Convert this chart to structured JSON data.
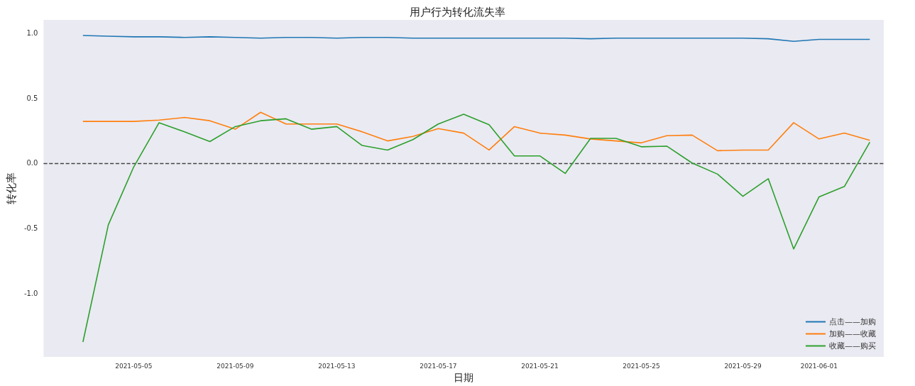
{
  "chart_data": {
    "type": "line",
    "title": "用户行为转化流失率",
    "xlabel": "日期",
    "ylabel": "转化率",
    "x": [
      "2021-05-03",
      "2021-05-04",
      "2021-05-05",
      "2021-05-06",
      "2021-05-07",
      "2021-05-08",
      "2021-05-09",
      "2021-05-10",
      "2021-05-11",
      "2021-05-12",
      "2021-05-13",
      "2021-05-14",
      "2021-05-15",
      "2021-05-16",
      "2021-05-17",
      "2021-05-18",
      "2021-05-19",
      "2021-05-20",
      "2021-05-21",
      "2021-05-22",
      "2021-05-23",
      "2021-05-24",
      "2021-05-25",
      "2021-05-26",
      "2021-05-27",
      "2021-05-28",
      "2021-05-29",
      "2021-05-30",
      "2021-05-31",
      "2021-06-01",
      "2021-06-02",
      "2021-06-03"
    ],
    "series": [
      {
        "name": "点击——加购",
        "color": "#1f77b4",
        "values": [
          0.98,
          0.975,
          0.97,
          0.97,
          0.965,
          0.97,
          0.965,
          0.96,
          0.965,
          0.965,
          0.96,
          0.965,
          0.965,
          0.96,
          0.96,
          0.96,
          0.96,
          0.96,
          0.96,
          0.96,
          0.955,
          0.96,
          0.96,
          0.96,
          0.96,
          0.96,
          0.96,
          0.955,
          0.935,
          0.95,
          0.95,
          0.95
        ]
      },
      {
        "name": "加购——收藏",
        "color": "#ff7f0e",
        "values": [
          0.32,
          0.32,
          0.32,
          0.33,
          0.35,
          0.325,
          0.26,
          0.39,
          0.3,
          0.3,
          0.3,
          0.24,
          0.17,
          0.205,
          0.265,
          0.23,
          0.1,
          0.28,
          0.23,
          0.215,
          0.185,
          0.17,
          0.155,
          0.21,
          0.215,
          0.095,
          0.1,
          0.1,
          0.31,
          0.185,
          0.23,
          0.175
        ]
      },
      {
        "name": "收藏——购买",
        "color": "#2ca02c",
        "values": [
          -1.375,
          -0.475,
          -0.03,
          0.31,
          0.24,
          0.165,
          0.28,
          0.325,
          0.34,
          0.26,
          0.28,
          0.135,
          0.1,
          0.18,
          0.3,
          0.375,
          0.295,
          0.055,
          0.055,
          -0.08,
          0.19,
          0.19,
          0.125,
          0.13,
          0.0,
          -0.085,
          -0.255,
          -0.12,
          -0.66,
          -0.26,
          -0.18,
          0.16
        ]
      }
    ],
    "xlim": [
      "2021-05-01T10:48",
      "2021-06-03T13:12"
    ],
    "xticks": [
      {
        "value": "2021-05-05",
        "label": "2021-05-05"
      },
      {
        "value": "2021-05-09",
        "label": "2021-05-09"
      },
      {
        "value": "2021-05-13",
        "label": "2021-05-13"
      },
      {
        "value": "2021-05-17",
        "label": "2021-05-17"
      },
      {
        "value": "2021-05-21",
        "label": "2021-05-21"
      },
      {
        "value": "2021-05-25",
        "label": "2021-05-25"
      },
      {
        "value": "2021-05-29",
        "label": "2021-05-29"
      },
      {
        "value": "2021-06-01",
        "label": "2021-06-01"
      }
    ],
    "ylim": [
      -1.49,
      1.1
    ],
    "yticks": [
      {
        "value": -1,
        "label": "-1.0"
      },
      {
        "value": -0.5,
        "label": "-0.5"
      },
      {
        "value": 0,
        "label": "0.0"
      },
      {
        "value": 0.5,
        "label": "0.5"
      },
      {
        "value": 1,
        "label": "1.0"
      }
    ],
    "ref_lines": [
      {
        "axis": "y",
        "value": 0,
        "color": "#444444",
        "line_style": "dashed"
      }
    ],
    "grid": false,
    "legend": "bottom right"
  }
}
